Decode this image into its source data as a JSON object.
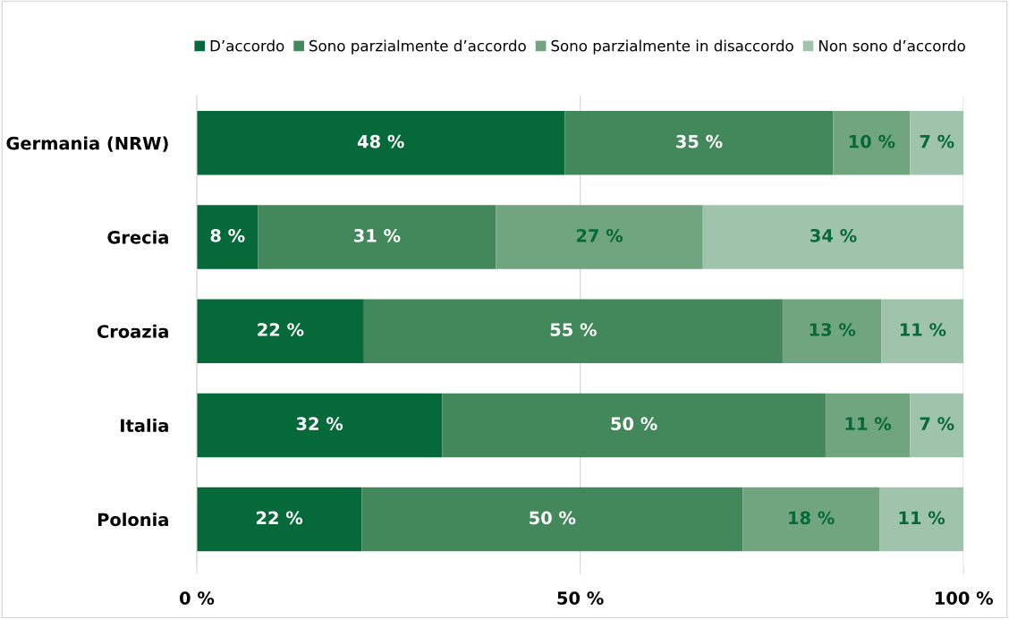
{
  "chart_data": {
    "type": "bar",
    "orientation": "horizontal",
    "stacked": true,
    "categories": [
      "Germania (NRW)",
      "Grecia",
      "Croazia",
      "Italia",
      "Polonia"
    ],
    "series": [
      {
        "name": "D’accordo",
        "color": "#05693a",
        "values": [
          48,
          8,
          21.8,
          32,
          21.5
        ],
        "value_labels": [
          "48 %",
          "8 %",
          "22 %",
          "32 %",
          "22 %"
        ]
      },
      {
        "name": "Sono parzialmente d’accordo",
        "color": "#43885a",
        "values": [
          35,
          31,
          54.6,
          50,
          49.7
        ],
        "value_labels": [
          "35 %",
          "31 %",
          "55 %",
          "50 %",
          "50 %"
        ]
      },
      {
        "name": "Sono parzialmente in disaccordo",
        "color": "#70a580",
        "values": [
          10,
          27,
          12.9,
          11,
          17.8
        ],
        "value_labels": [
          "10 %",
          "27 %",
          "13 %",
          "11 %",
          "18 %"
        ]
      },
      {
        "name": "Non sono d’accordo",
        "color": "#a0c4ab",
        "values": [
          7,
          34,
          10.7,
          7,
          11
        ],
        "value_labels": [
          "7 %",
          "34 %",
          "11 %",
          "7 %",
          "11 %"
        ]
      }
    ],
    "xlim": [
      0,
      100
    ],
    "xticks": [
      {
        "value": 0,
        "label": "0 %"
      },
      {
        "value": 50,
        "label": "50 %"
      },
      {
        "value": 100,
        "label": "100 %"
      }
    ],
    "grid": "x",
    "legend": "top"
  }
}
